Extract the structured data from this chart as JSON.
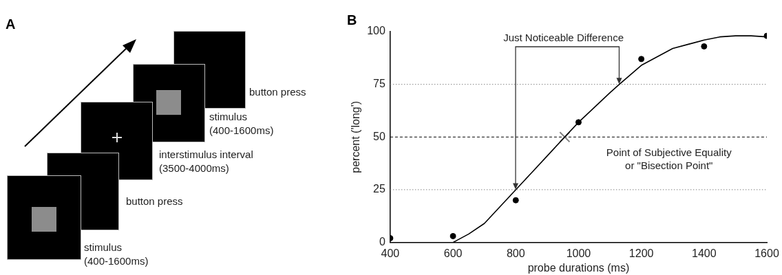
{
  "chart_data": [
    {
      "type": "other",
      "title": "A",
      "annotations": [
        "button press",
        "stimulus\n(400-1600ms)",
        "interstimulus interval\n(3500-4000ms)",
        "button press",
        "stimulus\n(400-1600ms)"
      ]
    },
    {
      "type": "scatter",
      "title": "B",
      "xlabel": "probe durations (ms)",
      "ylabel": "percent ('long')",
      "xlim": [
        400,
        1600
      ],
      "xticks": [
        400,
        600,
        800,
        1000,
        1200,
        1400,
        1600
      ],
      "ylim": [
        0,
        100
      ],
      "yticks": [
        0,
        25,
        50,
        75,
        100
      ],
      "grid": false,
      "legend": false,
      "series": [
        {
          "type": "line",
          "marker": "none",
          "color": "#000000",
          "x": [
            600,
            650,
            700,
            750,
            800,
            850,
            900,
            956,
            1000,
            1050,
            1100,
            1130,
            1200,
            1250,
            1300,
            1350,
            1400,
            1450,
            1500,
            1550,
            1600
          ],
          "values": [
            0,
            4,
            9,
            17,
            25,
            33,
            41,
            50,
            57,
            64,
            71,
            75,
            84,
            88,
            92,
            94,
            96,
            97.5,
            98,
            98,
            97.5
          ]
        },
        {
          "type": "scatter",
          "marker": "circle",
          "color": "#000000",
          "x": [
            400,
            600,
            800,
            1000,
            1200,
            1400,
            1600
          ],
          "values": [
            2,
            3,
            20,
            57,
            87,
            93,
            98
          ]
        },
        {
          "type": "scatter",
          "marker": "cross",
          "color": "#808080",
          "x": [
            956
          ],
          "values": [
            50
          ]
        }
      ],
      "ref_lines": [
        {
          "axis": "y",
          "value": 75,
          "color": "#999999",
          "line_style": "dotted"
        },
        {
          "axis": "y",
          "value": 50,
          "color": "#333333",
          "line_style": "dashed"
        },
        {
          "axis": "y",
          "value": 25,
          "color": "#999999",
          "line_style": "dotted"
        }
      ],
      "annotations": [
        "Just Noticeable Difference",
        "Point of Subjective Equality\nor \"Bisection Point\""
      ]
    }
  ]
}
